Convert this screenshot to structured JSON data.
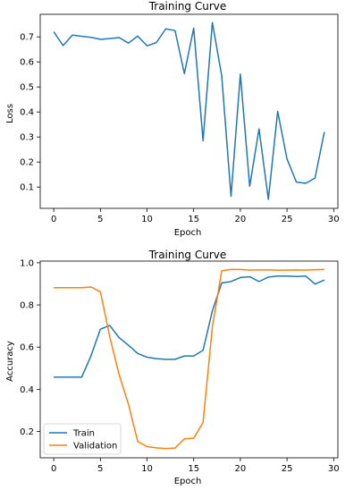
{
  "chart_data": [
    {
      "type": "line",
      "title": "Training Curve",
      "xlabel": "Epoch",
      "ylabel": "Loss",
      "xlim": [
        -1.45,
        30.45
      ],
      "ylim": [
        0.015,
        0.79
      ],
      "xticks": [
        0,
        5,
        10,
        15,
        20,
        25,
        30
      ],
      "yticks": [
        0.1,
        0.2,
        0.3,
        0.4,
        0.5,
        0.6,
        0.7
      ],
      "grid": false,
      "series": [
        {
          "color": "#1f77b4",
          "x": [
            0,
            1,
            2,
            3,
            4,
            5,
            6,
            7,
            8,
            9,
            10,
            11,
            12,
            13,
            14,
            15,
            16,
            17,
            18,
            19,
            20,
            21,
            22,
            23,
            24,
            25,
            26,
            27,
            28,
            29
          ],
          "values": [
            0.72,
            0.665,
            0.707,
            0.702,
            0.698,
            0.69,
            0.693,
            0.697,
            0.675,
            0.703,
            0.664,
            0.677,
            0.732,
            0.725,
            0.553,
            0.735,
            0.285,
            0.757,
            0.545,
            0.063,
            0.551,
            0.103,
            0.332,
            0.051,
            0.402,
            0.212,
            0.12,
            0.115,
            0.136,
            0.32
          ]
        }
      ]
    },
    {
      "type": "line",
      "title": "Training Curve",
      "xlabel": "Epoch",
      "ylabel": "Accuracy",
      "xlim": [
        -1.45,
        30.45
      ],
      "ylim": [
        0.075,
        1.008
      ],
      "xticks": [
        0,
        5,
        10,
        15,
        20,
        25,
        30
      ],
      "yticks": [
        0.2,
        0.4,
        0.6,
        0.8,
        1.0
      ],
      "ytick_labels": [
        "0.2",
        "0.4",
        "0.6",
        "0.8",
        "1.0"
      ],
      "grid": false,
      "legend": "lower-left",
      "series": [
        {
          "name": "Train",
          "color": "#1f77b4",
          "x": [
            0,
            1,
            2,
            3,
            4,
            5,
            6,
            7,
            8,
            9,
            10,
            11,
            12,
            13,
            14,
            15,
            16,
            17,
            18,
            19,
            20,
            21,
            22,
            23,
            24,
            25,
            26,
            27,
            28,
            29
          ],
          "values": [
            0.458,
            0.458,
            0.458,
            0.458,
            0.56,
            0.685,
            0.703,
            0.645,
            0.609,
            0.57,
            0.552,
            0.545,
            0.542,
            0.542,
            0.558,
            0.558,
            0.585,
            0.772,
            0.904,
            0.911,
            0.93,
            0.934,
            0.911,
            0.932,
            0.937,
            0.937,
            0.935,
            0.937,
            0.899,
            0.918
          ]
        },
        {
          "name": "Validation",
          "color": "#ff7f0e",
          "x": [
            0,
            1,
            2,
            3,
            4,
            5,
            6,
            7,
            8,
            9,
            10,
            11,
            12,
            13,
            14,
            15,
            16,
            17,
            18,
            19,
            20,
            21,
            22,
            23,
            24,
            25,
            26,
            27,
            28,
            29
          ],
          "values": [
            0.882,
            0.882,
            0.882,
            0.882,
            0.885,
            0.862,
            0.65,
            0.47,
            0.33,
            0.152,
            0.128,
            0.122,
            0.119,
            0.121,
            0.165,
            0.168,
            0.242,
            0.695,
            0.962,
            0.968,
            0.968,
            0.965,
            0.966,
            0.966,
            0.965,
            0.965,
            0.966,
            0.965,
            0.967,
            0.968
          ]
        }
      ]
    }
  ]
}
